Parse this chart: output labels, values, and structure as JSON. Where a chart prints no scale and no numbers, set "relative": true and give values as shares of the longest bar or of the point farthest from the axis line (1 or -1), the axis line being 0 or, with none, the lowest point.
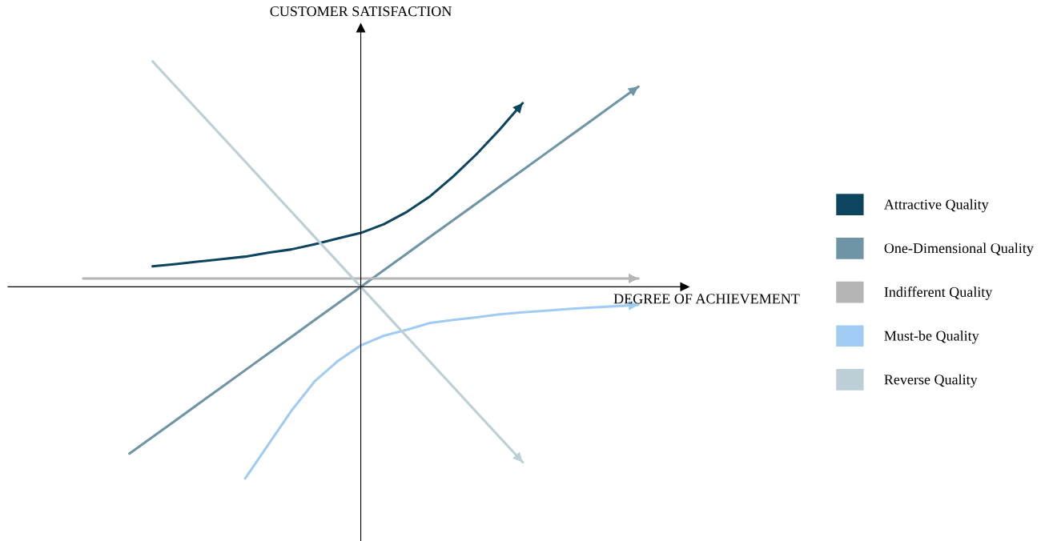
{
  "chart_data": {
    "type": "line",
    "relative": true,
    "xlabel": "DEGREE OF ACHIEVEMENT",
    "ylabel": "CUSTOMER SATISFACTION",
    "legend": "right",
    "categories": [
      null,
      null,
      null,
      null,
      null,
      null,
      null,
      null,
      null,
      null,
      null,
      null,
      null,
      null,
      null,
      null,
      null,
      null,
      null,
      null,
      null,
      null,
      null,
      null,
      null
    ],
    "series": [
      {
        "name": "Attractive Quality",
        "color": "#0d4561",
        "values": [
          null,
          null,
          null,
          0.091,
          0.101,
          0.112,
          0.123,
          0.134,
          0.151,
          0.166,
          0.189,
          0.214,
          0.239,
          0.278,
          0.333,
          0.402,
          0.49,
          0.588,
          0.697,
          0.815,
          null,
          null,
          null,
          null,
          null
        ]
      },
      {
        "name": "One-Dimensional Quality",
        "color": "#6e94a6",
        "values": [
          null,
          null,
          -0.74,
          -0.666,
          -0.592,
          -0.518,
          -0.444,
          -0.37,
          -0.296,
          -0.222,
          -0.148,
          -0.074,
          0,
          0.074,
          0.148,
          0.222,
          0.296,
          0.37,
          0.444,
          0.518,
          0.592,
          0.666,
          0.74,
          0.814,
          0.888
        ]
      },
      {
        "name": "Indifferent Quality",
        "color": "#b5b5b5",
        "values": [
          0.037,
          0.037,
          0.037,
          0.037,
          0.037,
          0.037,
          0.037,
          0.037,
          0.037,
          0.037,
          0.037,
          0.037,
          0.037,
          0.037,
          0.037,
          0.037,
          0.037,
          0.037,
          0.037,
          0.037,
          0.037,
          0.037,
          0.037,
          0.037,
          0.037
        ]
      },
      {
        "name": "Must-be Quality",
        "color": "#a0ccf3",
        "values": [
          null,
          null,
          null,
          null,
          null,
          null,
          null,
          -0.85,
          -0.7,
          -0.55,
          -0.42,
          -0.33,
          -0.26,
          -0.217,
          -0.19,
          -0.16,
          -0.147,
          -0.135,
          -0.122,
          -0.113,
          -0.106,
          -0.098,
          -0.092,
          -0.086,
          -0.08
        ]
      },
      {
        "name": "Reverse Quality",
        "color": "#bccfd6",
        "values": [
          null,
          null,
          null,
          1.0,
          0.889,
          0.778,
          0.667,
          0.556,
          0.444,
          0.333,
          0.222,
          0.111,
          0,
          -0.111,
          -0.222,
          -0.333,
          -0.444,
          -0.556,
          -0.667,
          -0.778,
          null,
          null,
          null,
          null,
          null
        ]
      }
    ]
  }
}
